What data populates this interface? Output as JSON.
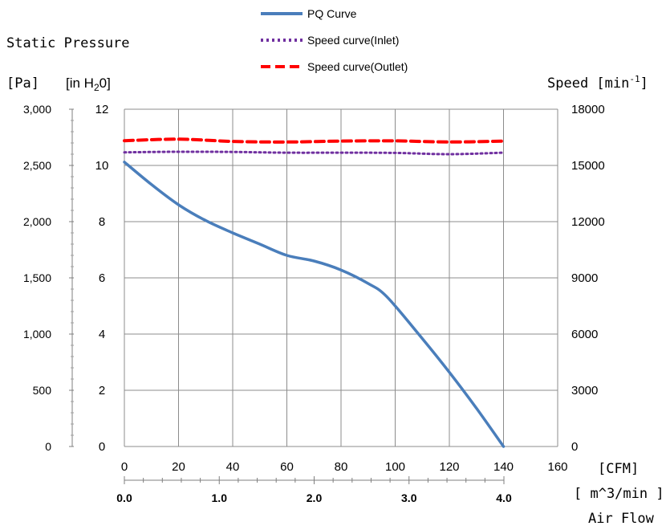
{
  "chart_data": {
    "type": "line",
    "legend": {
      "placement": "top-center",
      "entries": [
        {
          "label": "PQ Curve",
          "color": "#4a7ebb",
          "style": "solid"
        },
        {
          "label": "Speed curve(Inlet)",
          "color": "#7030a0",
          "style": "dotted"
        },
        {
          "label": "Speed curve(Outlet)",
          "color": "#ff0000",
          "style": "dashed"
        }
      ]
    },
    "ylabel": "Static Pressure",
    "left_axis_pa": {
      "unit": "[Pa]",
      "range": [
        0,
        3000
      ],
      "ticks": [
        "0",
        "500",
        "1,000",
        "1,500",
        "2,000",
        "2,500",
        "3,000"
      ]
    },
    "left_axis_inh2o": {
      "unit_prefix": "[in H",
      "unit_sub": "2",
      "unit_suffix": "0]",
      "range": [
        0,
        12
      ],
      "ticks": [
        "0",
        "2",
        "4",
        "6",
        "8",
        "10",
        "12"
      ]
    },
    "right_axis": {
      "label_prefix": "Speed [min",
      "label_sup": "-1",
      "label_suffix": "]",
      "range": [
        0,
        18000
      ],
      "ticks": [
        "0",
        "3000",
        "6000",
        "9000",
        "12000",
        "15000",
        "18000"
      ]
    },
    "x_axis_cfm": {
      "unit": "[CFM]",
      "range": [
        0,
        160
      ],
      "ticks": [
        "0",
        "20",
        "40",
        "60",
        "80",
        "100",
        "120",
        "140",
        "160"
      ]
    },
    "x_axis_m3min": {
      "unit": "[ m^3/min ]",
      "range": [
        0,
        4.0
      ],
      "ticks": [
        "0.0",
        "1.0",
        "2.0",
        "3.0",
        "4.0"
      ]
    },
    "xlabel": "Air Flow",
    "grid": true,
    "series": [
      {
        "name": "PQ Curve",
        "axis": "pressure_pa",
        "x_cfm": [
          0,
          10,
          20,
          30,
          40,
          50,
          60,
          70,
          80,
          90,
          97,
          110,
          120,
          130,
          140
        ],
        "values": [
          2530,
          2330,
          2150,
          2010,
          1900,
          1800,
          1700,
          1650,
          1570,
          1450,
          1330,
          960,
          660,
          340,
          0
        ]
      },
      {
        "name": "Speed curve(Inlet)",
        "axis": "speed",
        "x_cfm": [
          0,
          20,
          40,
          60,
          80,
          100,
          120,
          140
        ],
        "values": [
          15700,
          15730,
          15720,
          15680,
          15680,
          15670,
          15600,
          15680
        ]
      },
      {
        "name": "Speed curve(Outlet)",
        "axis": "speed",
        "x_cfm": [
          0,
          20,
          40,
          60,
          80,
          100,
          120,
          140
        ],
        "values": [
          16320,
          16400,
          16280,
          16250,
          16300,
          16310,
          16250,
          16300
        ]
      }
    ]
  }
}
